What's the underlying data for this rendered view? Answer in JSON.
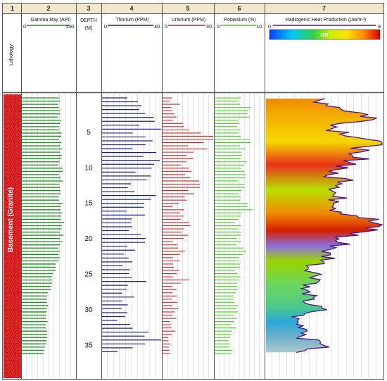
{
  "tracks": [
    "1",
    "2",
    "3",
    "4",
    "5",
    "6",
    "7"
  ],
  "headers": {
    "lithology": "Lithology",
    "gamma": {
      "label": "Gamma Ray (API)",
      "min": "0.",
      "max": "150."
    },
    "depth": {
      "label1": "DEPTH",
      "label2": "(M)"
    },
    "thorium": {
      "label": "Thorium (PPM)",
      "min": "0.",
      "max": "40."
    },
    "uranium": {
      "label": "Uranium (PPM)",
      "min": "0.",
      "max": "40."
    },
    "potassium": {
      "label": "Potassium (%)",
      "min": "0.",
      "max": "10."
    },
    "rhp": {
      "label": "Radiogenic Heat Production (µW/m³)",
      "min": "0.",
      "max": "8.",
      "colorbar_label": "GR"
    }
  },
  "lithology_unit": "Basement (Granite)",
  "colors": {
    "header_bg": "#f3e6cf",
    "gamma": "#1f8a1f",
    "thorium": "#1a237e",
    "uranium": "#c62828",
    "potassium": "#4cc92a",
    "rhp_outline": "#4a148c",
    "lithology_fill": "#e02020"
  },
  "chart_data": {
    "type": "well-log",
    "depth_unit": "M",
    "depth_range": [
      0,
      37
    ],
    "depth_ticks": [
      5,
      10,
      15,
      20,
      25,
      30,
      35
    ],
    "series": [
      {
        "name": "Gamma Ray (API)",
        "range": [
          0,
          150
        ],
        "depth": [
          0,
          2,
          4,
          6,
          8,
          10,
          12,
          14,
          16,
          18,
          20,
          22,
          24,
          26,
          28,
          30,
          32,
          34,
          36
        ],
        "values": [
          105,
          108,
          105,
          110,
          112,
          108,
          110,
          106,
          112,
          115,
          110,
          105,
          98,
          85,
          72,
          70,
          70,
          68,
          60
        ]
      },
      {
        "name": "Thorium (PPM)",
        "range": [
          0,
          40
        ],
        "depth": [
          0,
          2,
          4,
          6,
          8,
          10,
          12,
          14,
          16,
          18,
          20,
          22,
          24,
          26,
          28,
          30,
          32,
          34,
          36
        ],
        "values": [
          25,
          32,
          30,
          33,
          27,
          35,
          22,
          32,
          20,
          30,
          24,
          22,
          20,
          25,
          20,
          18,
          15,
          35,
          12
        ]
      },
      {
        "name": "Uranium (PPM)",
        "range": [
          0,
          40
        ],
        "depth": [
          0,
          2,
          4,
          6,
          8,
          10,
          12,
          14,
          16,
          18,
          20,
          22,
          24,
          26,
          28,
          30,
          32,
          34,
          36
        ],
        "values": [
          8,
          12,
          15,
          40,
          20,
          14,
          25,
          16,
          12,
          18,
          14,
          12,
          12,
          15,
          10,
          9,
          8,
          7,
          6
        ]
      },
      {
        "name": "Potassium (%)",
        "range": [
          0,
          10
        ],
        "depth": [
          0,
          2,
          4,
          6,
          8,
          10,
          12,
          14,
          16,
          18,
          20,
          22,
          24,
          26,
          28,
          30,
          32,
          34,
          36
        ],
        "values": [
          5.5,
          7,
          5,
          6.5,
          6,
          6,
          5,
          6,
          6.5,
          4.5,
          5,
          5.5,
          5,
          4.5,
          4.5,
          4,
          4,
          3.5,
          3
        ]
      },
      {
        "name": "Radiogenic Heat Production (µW/m³)",
        "range": [
          0,
          8
        ],
        "depth": [
          0,
          0.5,
          1.5,
          2.5,
          3,
          4.5,
          6,
          7,
          8,
          9,
          10,
          11,
          12,
          13,
          14,
          15,
          16,
          17,
          18,
          19,
          20,
          21,
          22,
          23,
          24,
          25,
          26,
          27,
          28,
          29,
          30,
          31,
          32,
          33,
          34,
          35,
          36
        ],
        "values": [
          4.5,
          3.5,
          5,
          6.8,
          7.5,
          4.5,
          7.2,
          8,
          5,
          6.5,
          5.5,
          4,
          6,
          5.2,
          4.5,
          5.5,
          5,
          6.8,
          7.5,
          7,
          4.8,
          5.2,
          4,
          4.5,
          3,
          3.5,
          3.8,
          2.5,
          3,
          2.8,
          3.8,
          2,
          2.2,
          3,
          2.5,
          4.5,
          2
        ]
      }
    ]
  }
}
